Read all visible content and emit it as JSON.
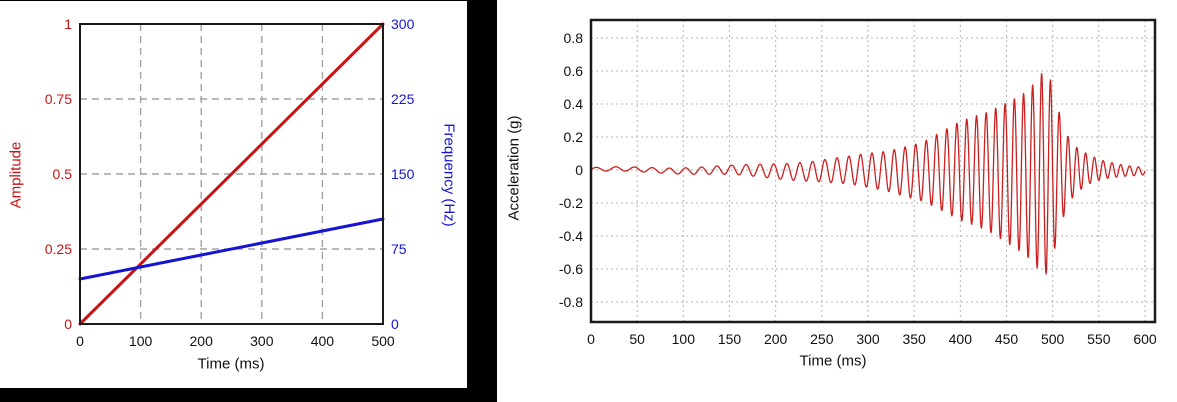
{
  "colors": {
    "background": "#000000",
    "card": "#ffffff",
    "frame": "#1a1a1a",
    "amplitude_red": "#c81414",
    "frequency_blue": "#1414d2",
    "signal_red": "#cc2020",
    "grid_dashed": "#a3a3a3",
    "grid_dotted": "#b3b3b3"
  },
  "chart_data": [
    {
      "id": "amplitude-frequency-vs-time",
      "type": "line",
      "title": "",
      "xlabel": "Time (ms)",
      "ylabel_left": "Amplitude",
      "ylabel_right": "Frequency (Hz)",
      "xlim": [
        0,
        500
      ],
      "ylim_left": [
        0,
        1
      ],
      "ylim_right": [
        0,
        300
      ],
      "grid": "dashed",
      "legend": "none",
      "x_ticks": {
        "values": [
          0,
          100,
          200,
          300,
          400,
          500
        ],
        "labels": [
          "0",
          "100",
          "200",
          "300",
          "400",
          "500"
        ]
      },
      "y_ticks_left": {
        "values": [
          0,
          0.25,
          0.5,
          0.75,
          1
        ],
        "labels": [
          "0",
          "0.25",
          "0.5",
          "0.75",
          "1"
        ]
      },
      "y_ticks_right": {
        "values": [
          0,
          75,
          150,
          225,
          300
        ],
        "labels": [
          "0",
          "75",
          "150",
          "225",
          "300"
        ]
      },
      "series": [
        {
          "name": "Amplitude",
          "axis": "left",
          "color": "#c81414",
          "x": [
            0,
            500
          ],
          "y": [
            0,
            1
          ]
        },
        {
          "name": "Frequency (Hz)",
          "axis": "right",
          "color": "#1414d2",
          "x": [
            0,
            500
          ],
          "y": [
            45,
            105
          ]
        }
      ]
    },
    {
      "id": "acceleration-vs-time",
      "type": "line",
      "title": "",
      "xlabel": "Time (ms)",
      "ylabel": "Acceleration (g)",
      "xlim": [
        0,
        610
      ],
      "ylim": [
        -0.92,
        0.91
      ],
      "grid": "dotted",
      "legend": "none",
      "x_ticks": {
        "values": [
          0,
          50,
          100,
          150,
          200,
          250,
          300,
          350,
          400,
          450,
          500,
          550,
          600
        ],
        "labels": [
          "0",
          "50",
          "100",
          "150",
          "200",
          "250",
          "300",
          "350",
          "400",
          "450",
          "500",
          "550",
          "600"
        ]
      },
      "y_ticks": {
        "values": [
          0.8,
          0.6,
          0.4,
          0.2,
          0,
          -0.2,
          -0.4,
          -0.6,
          -0.8
        ],
        "labels": [
          "0.8",
          "0.6",
          "0.4",
          "0.2",
          "0",
          "-0.2",
          "-0.4",
          "-0.6",
          "-0.8"
        ]
      },
      "series": [
        {
          "name": "Acceleration",
          "color": "#cc2020",
          "signal": {
            "kind": "chirp",
            "freq_start_hz": 45,
            "freq_end_hz": 105,
            "freq_ramp_end_ms": 500,
            "sample_step_ms": 0.4,
            "baseline_offset_factor": -0.04,
            "peak_value_g": 0.6,
            "trough_value_g": -0.65,
            "peak_time_ms": 490,
            "envelope_keypoints": [
              [
                0,
                0.012
              ],
              [
                40,
                0.013
              ],
              [
                80,
                0.016
              ],
              [
                120,
                0.022
              ],
              [
                160,
                0.03
              ],
              [
                200,
                0.045
              ],
              [
                240,
                0.06
              ],
              [
                280,
                0.085
              ],
              [
                320,
                0.12
              ],
              [
                360,
                0.18
              ],
              [
                400,
                0.3
              ],
              [
                430,
                0.36
              ],
              [
                455,
                0.44
              ],
              [
                470,
                0.49
              ],
              [
                482,
                0.56
              ],
              [
                490,
                0.625
              ],
              [
                497,
                0.58
              ],
              [
                505,
                0.4
              ],
              [
                515,
                0.22
              ],
              [
                525,
                0.14
              ],
              [
                540,
                0.085
              ],
              [
                555,
                0.055
              ],
              [
                575,
                0.035
              ],
              [
                600,
                0.022
              ]
            ]
          }
        }
      ]
    }
  ]
}
